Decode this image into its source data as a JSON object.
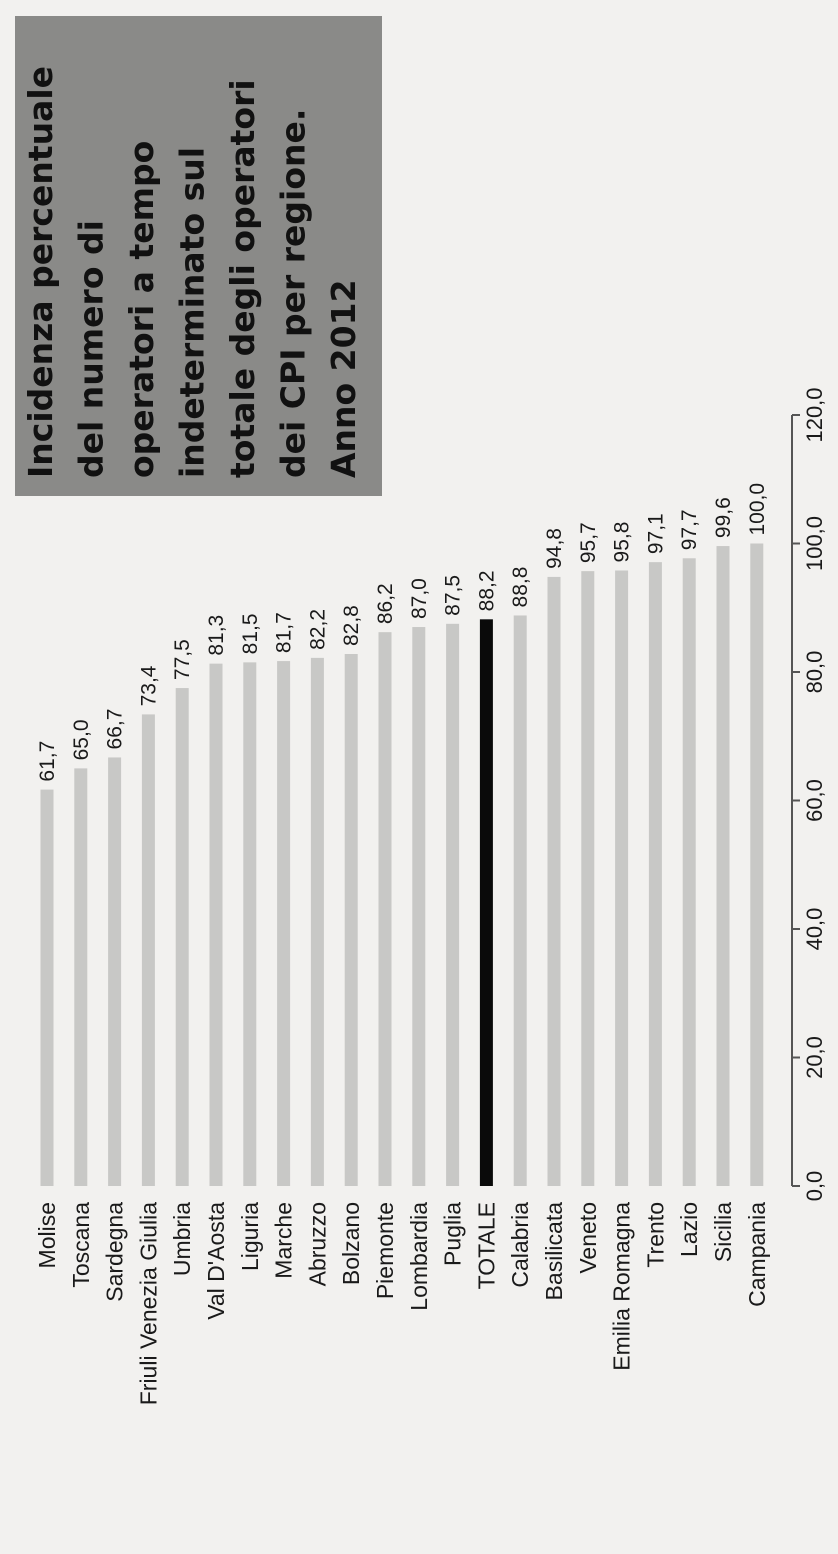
{
  "chart_data": {
    "type": "bar",
    "title": "Incidenza percentuale del numero di operatori a tempo indeterminato sul totale degli operatori dei CPI per regione. Anno 2012",
    "title_lines": [
      "Incidenza percentuale",
      "del numero di",
      "operatori a tempo",
      "indeterminato sul",
      "totale degli  operatori",
      "dei CPI per regione.",
      "Anno 2012"
    ],
    "categories": [
      "Molise",
      "Toscana",
      "Sardegna",
      "Friuli Venezia Giulia",
      "Umbria",
      "Val D'Aosta",
      "Liguria",
      "Marche",
      "Abruzzo",
      "Bolzano",
      "Piemonte",
      "Lombardia",
      "Puglia",
      "TOTALE",
      "Calabria",
      "Basilicata",
      "Veneto",
      "Emilia Romagna",
      "Trento",
      "Lazio",
      "Sicilia",
      "Campania"
    ],
    "values": [
      61.7,
      65.0,
      66.7,
      73.4,
      77.5,
      81.3,
      81.5,
      81.7,
      82.2,
      82.8,
      86.2,
      87.0,
      87.5,
      88.2,
      88.8,
      94.8,
      95.7,
      95.8,
      97.1,
      97.7,
      99.6,
      100.0
    ],
    "value_labels": [
      "61,7",
      "65,0",
      "66,7",
      "73,4",
      "77,5",
      "81,3",
      "81,5",
      "81,7",
      "82,2",
      "82,8",
      "86,2",
      "87,0",
      "87,5",
      "88,2",
      "88,8",
      "94,8",
      "95,7",
      "95,8",
      "97,1",
      "97,7",
      "99,6",
      "100,0"
    ],
    "highlight_category": "TOTALE",
    "ylim": [
      0,
      120
    ],
    "ticks": [
      0,
      20,
      40,
      60,
      80,
      100,
      120
    ],
    "tick_labels": [
      "0,0",
      "20,0",
      "40,0",
      "60,0",
      "80,0",
      "100,0",
      "120,0"
    ],
    "xlabel": "",
    "ylabel": "",
    "grid": false,
    "legend": "none",
    "colors": {
      "bar": "#c8c8c6",
      "highlight": "#0a0a0a",
      "title_box": "#8a8a88",
      "axis": "#555555"
    }
  }
}
